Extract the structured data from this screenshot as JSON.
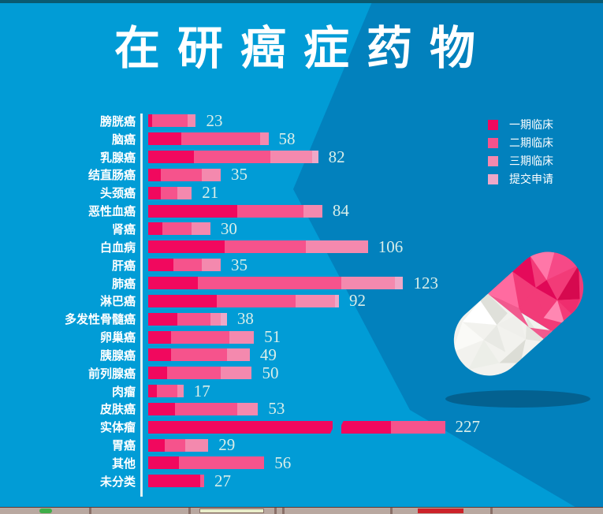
{
  "title": "在研癌症药物",
  "colors": {
    "background_light": "#019cd6",
    "background_dark": "#0281bd",
    "top_strip": "#0a5a72",
    "value_text": "#d9eee9",
    "label_text": "#ffffff"
  },
  "legend": [
    {
      "label": "一期临床",
      "color": "#f1085e"
    },
    {
      "label": "二期临床",
      "color": "#f6538c"
    },
    {
      "label": "三期临床",
      "color": "#f489ae"
    },
    {
      "label": "提交申请",
      "color": "#eea8c8"
    }
  ],
  "chart_data": {
    "type": "bar",
    "orientation": "horizontal",
    "stacked": true,
    "title": "在研癌症药物",
    "series_names": [
      "一期临床",
      "二期临床",
      "三期临床",
      "提交申请"
    ],
    "note": "segments are stage counts estimated from bar proportions; totals are the printed labels; the 实体瘤 bar is drawn with an axis break",
    "rows": [
      {
        "category": "膀胱癌",
        "total": 23,
        "segments": [
          {
            "p": 0,
            "u": 2
          },
          {
            "p": 1,
            "u": 17
          },
          {
            "p": 2,
            "u": 4
          }
        ]
      },
      {
        "category": "脑癌",
        "total": 58,
        "segments": [
          {
            "p": 0,
            "u": 16
          },
          {
            "p": 1,
            "u": 38
          },
          {
            "p": 2,
            "u": 4
          }
        ]
      },
      {
        "category": "乳腺癌",
        "total": 82,
        "segments": [
          {
            "p": 0,
            "u": 22
          },
          {
            "p": 1,
            "u": 37
          },
          {
            "p": 2,
            "u": 20
          },
          {
            "p": 3,
            "u": 3
          }
        ]
      },
      {
        "category": "结直肠癌",
        "total": 35,
        "segments": [
          {
            "p": 0,
            "u": 6
          },
          {
            "p": 1,
            "u": 20
          },
          {
            "p": 2,
            "u": 9
          }
        ]
      },
      {
        "category": "头颈癌",
        "total": 21,
        "segments": [
          {
            "p": 0,
            "u": 6
          },
          {
            "p": 1,
            "u": 8
          },
          {
            "p": 2,
            "u": 7
          }
        ]
      },
      {
        "category": "恶性血癌",
        "total": 84,
        "segments": [
          {
            "p": 0,
            "u": 43
          },
          {
            "p": 1,
            "u": 32
          },
          {
            "p": 2,
            "u": 9
          }
        ]
      },
      {
        "category": "肾癌",
        "total": 30,
        "segments": [
          {
            "p": 0,
            "u": 7
          },
          {
            "p": 1,
            "u": 14
          },
          {
            "p": 2,
            "u": 9
          }
        ]
      },
      {
        "category": "白血病",
        "total": 106,
        "segments": [
          {
            "p": 0,
            "u": 37
          },
          {
            "p": 1,
            "u": 39
          },
          {
            "p": 2,
            "u": 30
          }
        ]
      },
      {
        "category": "肝癌",
        "total": 35,
        "segments": [
          {
            "p": 0,
            "u": 12
          },
          {
            "p": 1,
            "u": 14
          },
          {
            "p": 2,
            "u": 9
          }
        ]
      },
      {
        "category": "肺癌",
        "total": 123,
        "segments": [
          {
            "p": 0,
            "u": 24
          },
          {
            "p": 1,
            "u": 69
          },
          {
            "p": 2,
            "u": 26
          },
          {
            "p": 3,
            "u": 4
          }
        ]
      },
      {
        "category": "淋巴癌",
        "total": 92,
        "segments": [
          {
            "p": 0,
            "u": 33
          },
          {
            "p": 1,
            "u": 38
          },
          {
            "p": 2,
            "u": 19
          },
          {
            "p": 3,
            "u": 2
          }
        ]
      },
      {
        "category": "多发性骨髓癌",
        "total": 38,
        "segments": [
          {
            "p": 0,
            "u": 14
          },
          {
            "p": 1,
            "u": 16
          },
          {
            "p": 2,
            "u": 5
          },
          {
            "p": 3,
            "u": 3
          }
        ]
      },
      {
        "category": "卵巢癌",
        "total": 51,
        "segments": [
          {
            "p": 0,
            "u": 11
          },
          {
            "p": 1,
            "u": 28
          },
          {
            "p": 2,
            "u": 12
          }
        ]
      },
      {
        "category": "胰腺癌",
        "total": 49,
        "segments": [
          {
            "p": 0,
            "u": 11
          },
          {
            "p": 1,
            "u": 27
          },
          {
            "p": 2,
            "u": 11
          }
        ]
      },
      {
        "category": "前列腺癌",
        "total": 50,
        "segments": [
          {
            "p": 0,
            "u": 9
          },
          {
            "p": 1,
            "u": 26
          },
          {
            "p": 2,
            "u": 15
          }
        ]
      },
      {
        "category": "肉瘤",
        "total": 17,
        "segments": [
          {
            "p": 0,
            "u": 4
          },
          {
            "p": 1,
            "u": 10
          },
          {
            "p": 2,
            "u": 3
          }
        ]
      },
      {
        "category": "皮肤癌",
        "total": 53,
        "segments": [
          {
            "p": 0,
            "u": 13
          },
          {
            "p": 1,
            "u": 30
          },
          {
            "p": 2,
            "u": 10
          }
        ]
      },
      {
        "category": "实体瘤",
        "total": 227,
        "broken": true,
        "segments": [
          {
            "p": 0,
            "u": 89
          },
          {
            "gap": true
          },
          {
            "p": 0,
            "u": 24
          },
          {
            "p": 1,
            "u": 26
          }
        ]
      },
      {
        "category": "胃癌",
        "total": 29,
        "segments": [
          {
            "p": 0,
            "u": 8
          },
          {
            "p": 1,
            "u": 10
          },
          {
            "p": 2,
            "u": 11
          }
        ]
      },
      {
        "category": "其他",
        "total": 56,
        "segments": [
          {
            "p": 0,
            "u": 15
          },
          {
            "p": 1,
            "u": 41
          }
        ]
      },
      {
        "category": "未分类",
        "total": 27,
        "segments": [
          {
            "p": 0,
            "u": 25
          },
          {
            "p": 1,
            "u": 2
          }
        ]
      }
    ]
  }
}
